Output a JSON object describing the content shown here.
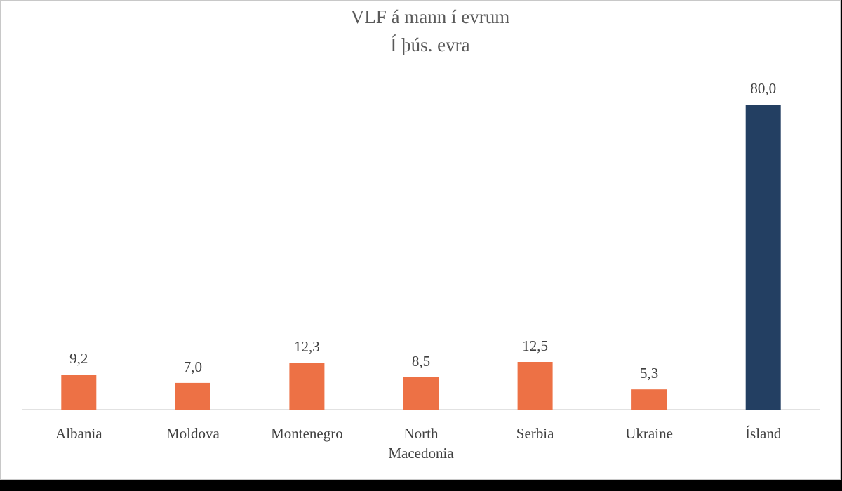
{
  "chart_data": {
    "type": "bar",
    "title": "VLF á mann í evrum",
    "subtitle": "Í þús. evra",
    "categories": [
      "Albania",
      "Moldova",
      "Montenegro",
      "North Macedonia",
      "Serbia",
      "Ukraine",
      "Ísland"
    ],
    "category_lines": [
      [
        "Albania"
      ],
      [
        "Moldova"
      ],
      [
        "Montenegro"
      ],
      [
        "North",
        "Macedonia"
      ],
      [
        "Serbia"
      ],
      [
        "Ukraine"
      ],
      [
        "Ísland"
      ]
    ],
    "values": [
      9.2,
      7.0,
      12.3,
      8.5,
      12.5,
      5.3,
      80.0
    ],
    "value_labels": [
      "9,2",
      "7,0",
      "12,3",
      "8,5",
      "12,5",
      "5,3",
      "80,0"
    ],
    "colors": [
      "#ed7145",
      "#ed7145",
      "#ed7145",
      "#ed7145",
      "#ed7145",
      "#ed7145",
      "#233f62"
    ],
    "xlabel": "",
    "ylabel": "",
    "ylim": [
      0,
      80
    ],
    "grid": false,
    "legend": "none"
  }
}
